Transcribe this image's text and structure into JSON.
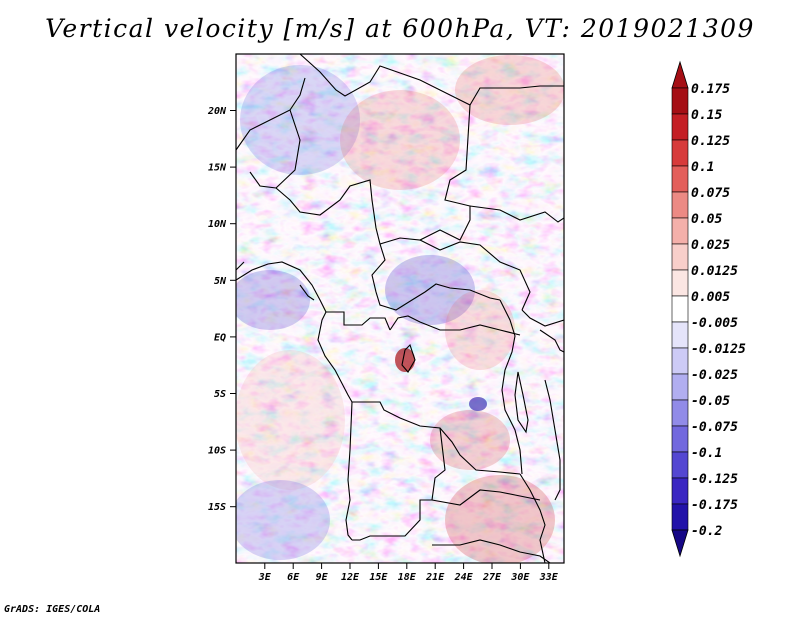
{
  "title": "Vertical velocity [m/s] at 600hPa, VT: 2019021309",
  "credit": "GrADS: IGES/COLA",
  "map": {
    "lon_ticks": [
      "3E",
      "6E",
      "9E",
      "12E",
      "15E",
      "18E",
      "21E",
      "24E",
      "27E",
      "30E",
      "33E"
    ],
    "lat_ticks": [
      "20N",
      "15N",
      "10N",
      "5N",
      "EQ",
      "5S",
      "10S",
      "15S"
    ]
  },
  "colorbar": {
    "labels": [
      "0.175",
      "0.15",
      "0.125",
      "0.1",
      "0.075",
      "0.05",
      "0.025",
      "0.0125",
      "0.005",
      "-0.005",
      "-0.0125",
      "-0.025",
      "-0.05",
      "-0.075",
      "-0.1",
      "-0.125",
      "-0.175",
      "-0.2"
    ],
    "colors": [
      "#a50f15",
      "#c41f25",
      "#d73b3b",
      "#e35f5b",
      "#ec8a84",
      "#f4b0aa",
      "#f8cfca",
      "#fbe6e3",
      "#ffffff",
      "#e5e4fa",
      "#cdcbf6",
      "#b1aef0",
      "#918be8",
      "#7268de",
      "#5447d2",
      "#3a26c2",
      "#2212a9",
      "#160886"
    ]
  }
}
